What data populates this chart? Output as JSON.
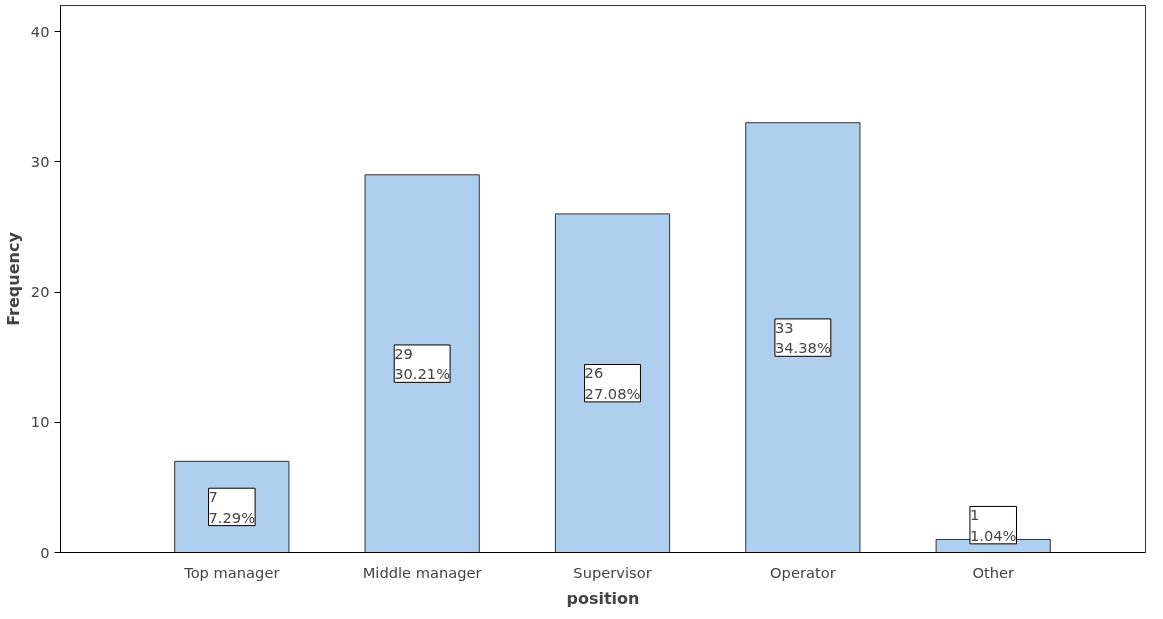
{
  "chart_data": {
    "type": "bar",
    "xlabel": "position",
    "ylabel": "Frequency",
    "categories": [
      "Top manager",
      "Middle manager",
      "Supervisor",
      "Operator",
      "Other"
    ],
    "values": [
      7,
      29,
      26,
      33,
      1
    ],
    "color": "#aecfee",
    "value_labels": [
      "7\n7.29%",
      "29\n30.21%",
      "26\n27.08%",
      "33\n34.38%",
      "1\n1.04%"
    ],
    "ylim": [
      0,
      42
    ],
    "yticks": [
      0,
      10,
      20,
      30,
      40
    ],
    "grid": false
  }
}
